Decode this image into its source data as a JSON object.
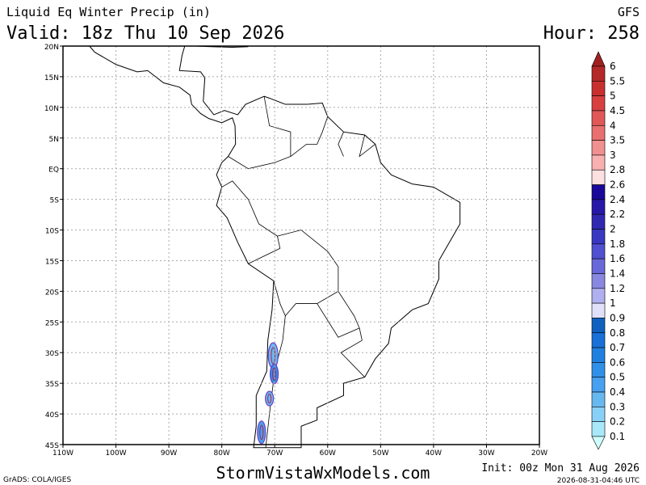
{
  "header": {
    "title": "Liquid Eq Winter Precip (in)",
    "model": "GFS",
    "valid": "Valid: 18z Thu 10 Sep 2026",
    "hour": "Hour: 258"
  },
  "map": {
    "lat_labels": [
      "20N",
      "15N",
      "10N",
      "5N",
      "EQ",
      "5S",
      "10S",
      "15S",
      "20S",
      "25S",
      "30S",
      "35S",
      "40S",
      "45S"
    ],
    "lon_labels": [
      "110W",
      "100W",
      "90W",
      "80W",
      "70W",
      "60W",
      "50W",
      "40W",
      "30W",
      "20W"
    ]
  },
  "colorbar": {
    "labels": [
      "6",
      "5.5",
      "5",
      "4.5",
      "4",
      "3.5",
      "3",
      "2.8",
      "2.6",
      "2.4",
      "2.2",
      "2",
      "1.8",
      "1.6",
      "1.4",
      "1.2",
      "1",
      "0.9",
      "0.8",
      "0.7",
      "0.6",
      "0.5",
      "0.4",
      "0.3",
      "0.2",
      "0.1"
    ],
    "colors": [
      "#a02020",
      "#b52828",
      "#c83030",
      "#d84040",
      "#e05858",
      "#e87070",
      "#f09090",
      "#f8b0b0",
      "#fde0e0",
      "#1a0898",
      "#2818a8",
      "#3028b0",
      "#3838c0",
      "#5050d0",
      "#6868d8",
      "#8888e0",
      "#b0b0f0",
      "#e0e0fa",
      "#1060c0",
      "#1870d8",
      "#2080e0",
      "#3090e8",
      "#48a0f0",
      "#68b8f0",
      "#88d0f8",
      "#a8e8f8",
      "#d0ffff"
    ]
  },
  "footer": {
    "credit": "GrADS: COLA/IGES",
    "site": "StormVistaWxModels.com",
    "init": "Init: 00z Mon 31 Aug 2026",
    "timestamp": "2026-08-31-04:46 UTC"
  }
}
